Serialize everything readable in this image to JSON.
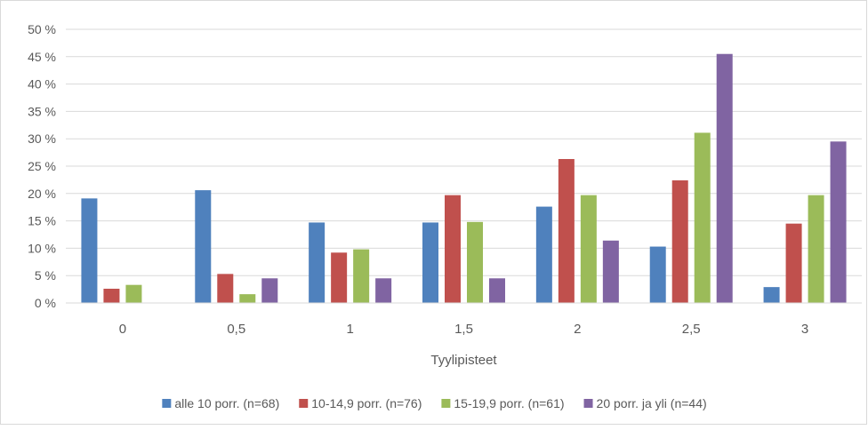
{
  "chart_data": {
    "type": "bar",
    "title": "",
    "xlabel": "Tyylipisteet",
    "ylabel": "",
    "ylim": [
      0,
      50
    ],
    "ytick_step": 5,
    "y_unit": " %",
    "grid": true,
    "legend_position": "bottom",
    "categories": [
      "0",
      "0,5",
      "1",
      "1,5",
      "2",
      "2,5",
      "3"
    ],
    "series": [
      {
        "name": "alle 10 porr. (n=68)",
        "color": "#4f81bd",
        "values": [
          19.1,
          20.6,
          14.7,
          14.7,
          17.6,
          10.3,
          2.9
        ]
      },
      {
        "name": "10-14,9 porr. (n=76)",
        "color": "#c0504d",
        "values": [
          2.6,
          5.3,
          9.2,
          19.7,
          26.3,
          22.4,
          14.5
        ]
      },
      {
        "name": "15-19,9 porr. (n=61)",
        "color": "#9bbb59",
        "values": [
          3.3,
          1.6,
          9.8,
          14.8,
          19.7,
          31.1,
          19.7
        ]
      },
      {
        "name": "20 porr. ja yli (n=44)",
        "color": "#8064a2",
        "values": [
          0,
          4.5,
          4.5,
          4.5,
          11.4,
          45.5,
          29.5
        ]
      }
    ]
  }
}
